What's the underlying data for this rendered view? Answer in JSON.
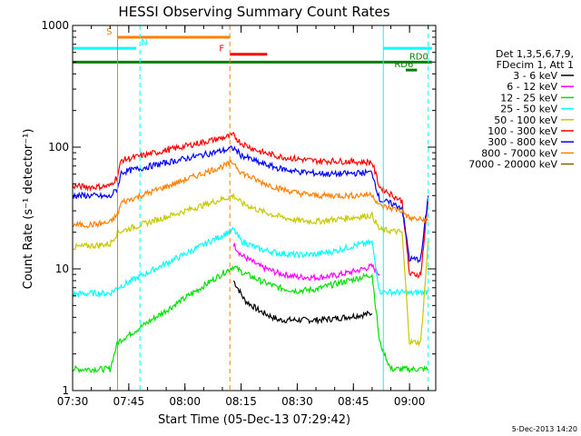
{
  "chart_data": {
    "type": "line",
    "title": "HESSI Observing Summary Count Rates",
    "xlabel": "Start Time (05-Dec-13 07:29:42)",
    "ylabel": "Count Rate (s⁻¹ detector⁻¹)",
    "xlim": [
      "07:30",
      "09:07"
    ],
    "ylim": [
      1,
      1000
    ],
    "yscale": "log",
    "x_ticks": [
      "07:30",
      "07:45",
      "08:00",
      "08:15",
      "08:30",
      "08:45",
      "09:00"
    ],
    "y_ticks": [
      "1",
      "10",
      "100",
      "1000"
    ],
    "legend_header": [
      "Det 1,3,5,6,7,9,",
      "FDecim 1, Att 1"
    ],
    "legend_position": "right",
    "footer": "5-Dec-2013 14:20",
    "series": [
      {
        "name": "3 - 6 keV",
        "color": "#000000",
        "points": [
          [
            "08:13",
            8
          ],
          [
            "08:16",
            5.5
          ],
          [
            "08:20",
            4.5
          ],
          [
            "08:25",
            3.8
          ],
          [
            "08:30",
            3.8
          ],
          [
            "08:35",
            3.8
          ],
          [
            "08:40",
            3.9
          ],
          [
            "08:45",
            4.1
          ],
          [
            "08:50",
            4.3
          ]
        ]
      },
      {
        "name": "6 - 12 keV",
        "color": "#ff00ff",
        "points": [
          [
            "08:13",
            16
          ],
          [
            "08:15",
            13
          ],
          [
            "08:20",
            10.5
          ],
          [
            "08:25",
            9.2
          ],
          [
            "08:30",
            8.6
          ],
          [
            "08:35",
            8.5
          ],
          [
            "08:40",
            8.8
          ],
          [
            "08:45",
            9.5
          ],
          [
            "08:50",
            10.5
          ],
          [
            "08:52",
            9
          ]
        ]
      },
      {
        "name": "12 - 25 keV",
        "color": "#00e000",
        "points": [
          [
            "07:30",
            1.5
          ],
          [
            "07:40",
            1.5
          ],
          [
            "07:42",
            2.5
          ],
          [
            "08:13",
            10.5
          ],
          [
            "08:15",
            9.5
          ],
          [
            "08:20",
            8
          ],
          [
            "08:25",
            7
          ],
          [
            "08:30",
            6.6
          ],
          [
            "08:35",
            6.8
          ],
          [
            "08:40",
            7.5
          ],
          [
            "08:45",
            8.2
          ],
          [
            "08:50",
            9
          ],
          [
            "08:52",
            2.5
          ],
          [
            "08:55",
            1.5
          ],
          [
            "09:05",
            1.5
          ]
        ]
      },
      {
        "name": "25 - 50 keV",
        "color": "#00ffff",
        "points": [
          [
            "07:30",
            6.2
          ],
          [
            "07:35",
            6.3
          ],
          [
            "07:40",
            6.3
          ],
          [
            "07:42",
            7
          ],
          [
            "08:13",
            21
          ],
          [
            "08:15",
            17
          ],
          [
            "08:20",
            14.5
          ],
          [
            "08:25",
            13.5
          ],
          [
            "08:30",
            13
          ],
          [
            "08:35",
            13.2
          ],
          [
            "08:40",
            14
          ],
          [
            "08:45",
            15.5
          ],
          [
            "08:50",
            16.5
          ],
          [
            "08:52",
            6.5
          ],
          [
            "08:58",
            6.4
          ],
          [
            "09:00",
            6.3
          ],
          [
            "09:05",
            6.5
          ]
        ]
      },
      {
        "name": "50 - 100 keV",
        "color": "#c8c800",
        "points": [
          [
            "07:30",
            15
          ],
          [
            "07:35",
            15.5
          ],
          [
            "07:40",
            16
          ],
          [
            "07:42",
            20
          ],
          [
            "08:13",
            40
          ],
          [
            "08:15",
            35
          ],
          [
            "08:20",
            30
          ],
          [
            "08:25",
            27
          ],
          [
            "08:30",
            25
          ],
          [
            "08:35",
            24.5
          ],
          [
            "08:40",
            25.5
          ],
          [
            "08:45",
            26.5
          ],
          [
            "08:50",
            27.5
          ],
          [
            "08:52",
            21
          ],
          [
            "08:58",
            20
          ],
          [
            "09:00",
            2.5
          ],
          [
            "09:03",
            2.5
          ],
          [
            "09:05",
            17
          ]
        ]
      },
      {
        "name": "100 - 300 keV",
        "color": "#ff0000",
        "points": [
          [
            "07:30",
            48
          ],
          [
            "07:35",
            47
          ],
          [
            "07:40",
            48
          ],
          [
            "07:42",
            58
          ],
          [
            "07:43",
            78
          ],
          [
            "08:13",
            125
          ],
          [
            "08:15",
            108
          ],
          [
            "08:20",
            92
          ],
          [
            "08:25",
            84
          ],
          [
            "08:30",
            80
          ],
          [
            "08:35",
            77
          ],
          [
            "08:40",
            77
          ],
          [
            "08:45",
            76
          ],
          [
            "08:50",
            75
          ],
          [
            "08:52",
            47
          ],
          [
            "08:58",
            36
          ],
          [
            "09:00",
            9
          ],
          [
            "09:03",
            9
          ],
          [
            "09:05",
            38
          ]
        ]
      },
      {
        "name": "300 - 800 keV",
        "color": "#0000ff",
        "points": [
          [
            "07:30",
            40
          ],
          [
            "07:35",
            40
          ],
          [
            "07:40",
            39
          ],
          [
            "07:42",
            46
          ],
          [
            "07:43",
            62
          ],
          [
            "08:13",
            98
          ],
          [
            "08:15",
            86
          ],
          [
            "08:20",
            74
          ],
          [
            "08:25",
            67
          ],
          [
            "08:30",
            63
          ],
          [
            "08:35",
            61
          ],
          [
            "08:40",
            60
          ],
          [
            "08:45",
            61
          ],
          [
            "08:50",
            62
          ],
          [
            "08:52",
            37
          ],
          [
            "08:58",
            32
          ],
          [
            "09:00",
            12
          ],
          [
            "09:03",
            12
          ],
          [
            "09:05",
            40
          ]
        ]
      },
      {
        "name": "800 - 7000 keV",
        "color": "#ff8000",
        "points": [
          [
            "07:30",
            23
          ],
          [
            "07:35",
            23
          ],
          [
            "07:40",
            24
          ],
          [
            "07:42",
            28
          ],
          [
            "07:43",
            35
          ],
          [
            "08:13",
            75
          ],
          [
            "08:15",
            62
          ],
          [
            "08:20",
            52
          ],
          [
            "08:25",
            46
          ],
          [
            "08:30",
            42
          ],
          [
            "08:35",
            40
          ],
          [
            "08:40",
            40
          ],
          [
            "08:45",
            40
          ],
          [
            "08:50",
            41
          ],
          [
            "08:52",
            33
          ],
          [
            "08:58",
            30
          ],
          [
            "09:00",
            26
          ],
          [
            "09:05",
            25
          ]
        ]
      },
      {
        "name": "7000 - 20000 keV",
        "color": "#806000",
        "points": []
      }
    ],
    "flag_bars": [
      {
        "label": "S",
        "color": "#ff8000",
        "start": "07:42",
        "end": "08:12",
        "level": 800
      },
      {
        "label": "N",
        "color": "#00ffff",
        "start": "07:30",
        "end": "07:47",
        "level": 650
      },
      {
        "label": "F",
        "color": "#ff0000",
        "start": "08:12",
        "end": "08:22",
        "level": 580
      },
      {
        "label": "RD0",
        "color": "#008000",
        "start": "07:30",
        "end": "09:06",
        "level": 500
      },
      {
        "label": "RD6",
        "color": "#008000",
        "start": "08:59",
        "end": "09:02",
        "level": 430
      },
      {
        "label": "",
        "color": "#00ffff",
        "start": "08:53",
        "end": "09:06",
        "level": 650
      }
    ],
    "vertical_lines": [
      {
        "time": "07:42",
        "color": "#ff8000",
        "style": "solid"
      },
      {
        "time": "07:48",
        "color": "#00ffff",
        "style": "dashed"
      },
      {
        "time": "08:12",
        "color": "#ff8000",
        "style": "dashed"
      },
      {
        "time": "08:53",
        "color": "#00ffff",
        "style": "solid"
      },
      {
        "time": "09:05",
        "color": "#00ffff",
        "style": "dashed"
      }
    ],
    "grid": false
  }
}
